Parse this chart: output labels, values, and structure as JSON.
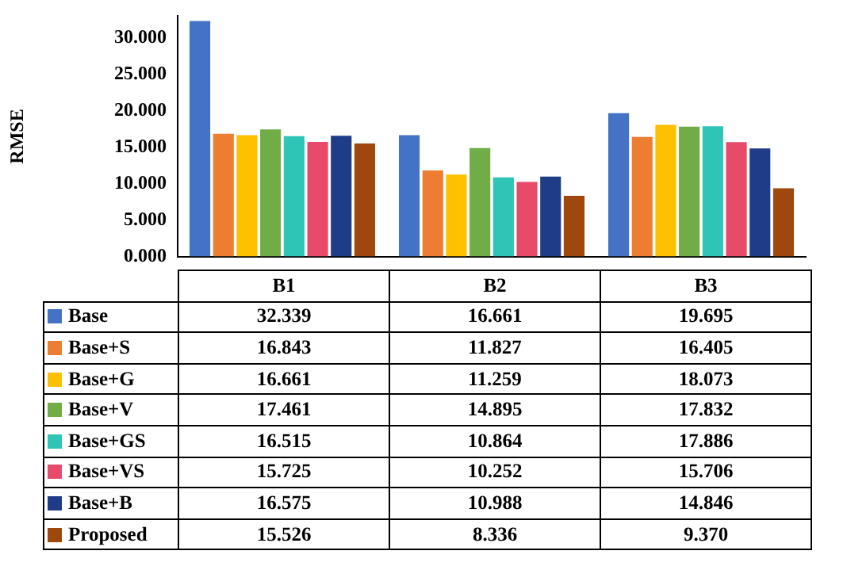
{
  "chart_data": {
    "type": "bar",
    "ylabel": "RMSE",
    "categories": [
      "B1",
      "B2",
      "B3"
    ],
    "ylim": [
      0,
      33
    ],
    "yticks": [
      {
        "value": 0,
        "label": "0.000"
      },
      {
        "value": 5,
        "label": "5.000"
      },
      {
        "value": 10,
        "label": "10.000"
      },
      {
        "value": 15,
        "label": "15.000"
      },
      {
        "value": 20,
        "label": "20.000"
      },
      {
        "value": 25,
        "label": "25.000"
      },
      {
        "value": 30,
        "label": "30.000"
      }
    ],
    "grid": false,
    "legend": "bottom",
    "series": [
      {
        "name": "Base",
        "color": "#4472c4",
        "values": [
          32.339,
          16.661,
          19.695
        ],
        "value_labels": [
          "32.339",
          "16.661",
          "19.695"
        ]
      },
      {
        "name": "Base+S",
        "color": "#ed7d31",
        "values": [
          16.843,
          11.827,
          16.405
        ],
        "value_labels": [
          "16.843",
          "11.827",
          "16.405"
        ]
      },
      {
        "name": "Base+G",
        "color": "#ffc000",
        "values": [
          16.661,
          11.259,
          18.073
        ],
        "value_labels": [
          "16.661",
          "11.259",
          "18.073"
        ]
      },
      {
        "name": "Base+V",
        "color": "#70ad47",
        "values": [
          17.461,
          14.895,
          17.832
        ],
        "value_labels": [
          "17.461",
          "14.895",
          "17.832"
        ]
      },
      {
        "name": "Base+GS",
        "color": "#2ec4b6",
        "values": [
          16.515,
          10.864,
          17.886
        ],
        "value_labels": [
          "16.515",
          "10.864",
          "17.886"
        ]
      },
      {
        "name": "Base+VS",
        "color": "#e84a6a",
        "values": [
          15.725,
          10.252,
          15.706
        ],
        "value_labels": [
          "15.725",
          "10.252",
          "15.706"
        ]
      },
      {
        "name": "Base+B",
        "color": "#1f3c88",
        "values": [
          16.575,
          10.988,
          14.846
        ],
        "value_labels": [
          "16.575",
          "10.988",
          "14.846"
        ]
      },
      {
        "name": "Proposed",
        "color": "#9e480e",
        "values": [
          15.526,
          8.336,
          9.37
        ],
        "value_labels": [
          "15.526",
          "8.336",
          "9.370"
        ]
      }
    ]
  }
}
